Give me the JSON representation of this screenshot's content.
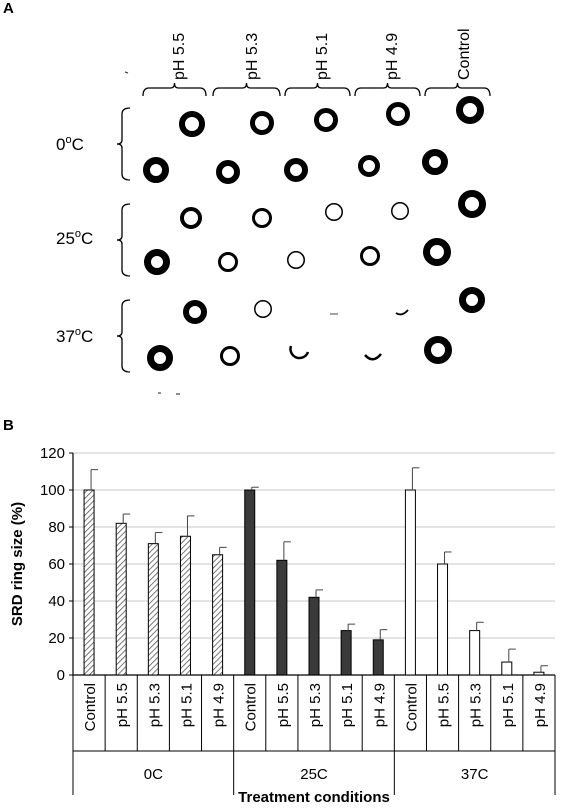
{
  "panel_a": {
    "label": "A",
    "columns": [
      "pH 5.5",
      "pH 5.3",
      "pH 5.1",
      "pH 4.9",
      "Control"
    ],
    "rows": [
      {
        "temp": "0",
        "unit": "o",
        "suffix": "C"
      },
      {
        "temp": "25",
        "unit": "o",
        "suffix": "C"
      },
      {
        "temp": "37",
        "unit": "o",
        "suffix": "C"
      }
    ]
  },
  "panel_b": {
    "label": "B"
  },
  "chart_data": {
    "type": "bar",
    "ylabel": "SRD ring size (%)",
    "xlabel": "Treatment conditions",
    "ylim": [
      0,
      120
    ],
    "yticks": [
      0,
      20,
      40,
      60,
      80,
      100,
      120
    ],
    "grid": true,
    "groups": [
      {
        "name": "0C",
        "fill": "hatched",
        "categories": [
          "Control",
          "pH 5.5",
          "pH 5.3",
          "pH 5.1",
          "pH 4.9"
        ],
        "values": [
          100,
          82,
          71,
          75,
          65
        ],
        "errors": [
          11,
          5,
          6,
          11,
          4
        ]
      },
      {
        "name": "25C",
        "fill": "#3a3a3a",
        "categories": [
          "Control",
          "pH 5.5",
          "pH 5.3",
          "pH 5.1",
          "pH 4.9"
        ],
        "values": [
          100,
          62,
          42,
          24,
          19
        ],
        "errors": [
          1.5,
          10,
          4,
          3.5,
          5.5
        ]
      },
      {
        "name": "37C",
        "fill": "#ffffff",
        "categories": [
          "Control",
          "pH 5.5",
          "pH 5.3",
          "pH 5.1",
          "pH 4.9"
        ],
        "values": [
          100,
          60,
          24,
          7,
          1.5
        ],
        "errors": [
          12,
          6.5,
          4.5,
          7,
          3.5
        ]
      }
    ]
  }
}
